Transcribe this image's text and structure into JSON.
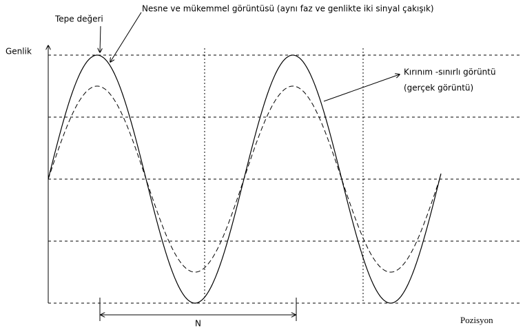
{
  "annotations": {
    "peak": "Tepe değeri",
    "object": "Nesne ve mükemmel görüntüsü (aynı faz ve genlikte iki sinyal çakışık)",
    "diffraction": "Kırınım -sınırlı görüntü",
    "real": "(gerçek görüntü)",
    "period": "N"
  },
  "axes": {
    "y_label": "Genlik",
    "x_label": "Pozisyon"
  }
}
